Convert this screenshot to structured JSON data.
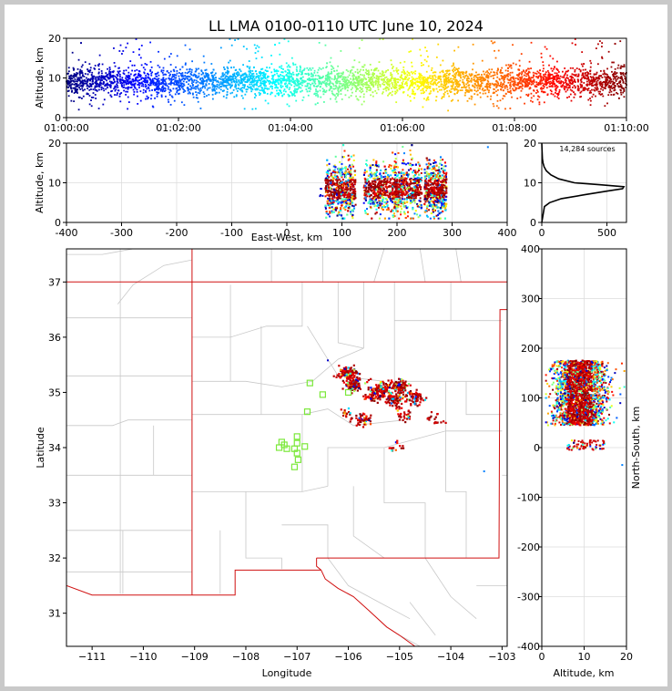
{
  "chart_data": [
    {
      "type": "scatter",
      "panel": "time-altitude",
      "title": "LL LMA 0100-0110 UTC June 10, 2024",
      "xlabel": "",
      "ylabel": "Altitude, km",
      "x_ticks": [
        "01:00:00",
        "01:02:00",
        "01:04:00",
        "01:06:00",
        "01:08:00",
        "01:10:00"
      ],
      "xlim_minutes": [
        0,
        10
      ],
      "ylim": [
        0,
        20
      ],
      "y_ticks": [
        0,
        10,
        20
      ],
      "altitude_band_km": [
        6,
        12
      ],
      "altitude_center_km": 9,
      "colormap": "jet, colored by time"
    },
    {
      "type": "scatter",
      "panel": "east-west-altitude",
      "xlabel": "East-West, km",
      "ylabel": "Altitude, km",
      "xlim": [
        -400,
        400
      ],
      "x_ticks": [
        -400,
        -300,
        -200,
        -100,
        0,
        100,
        200,
        300,
        400
      ],
      "ylim": [
        0,
        20
      ],
      "y_ticks": [
        0,
        10,
        20
      ],
      "clusters_x_km": [
        [
          70,
          125
        ],
        [
          140,
          200
        ],
        [
          195,
          245
        ],
        [
          250,
          290
        ]
      ]
    },
    {
      "type": "line",
      "panel": "altitude-histogram",
      "annotation": "14,284 sources",
      "xlim": [
        0,
        650
      ],
      "x_ticks": [
        0,
        500
      ],
      "ylim": [
        0,
        20
      ],
      "y_ticks": [
        0,
        10,
        20
      ],
      "profile": [
        [
          0,
          0
        ],
        [
          20,
          4
        ],
        [
          60,
          5
        ],
        [
          150,
          6
        ],
        [
          330,
          7
        ],
        [
          520,
          8
        ],
        [
          620,
          8.5
        ],
        [
          630,
          9
        ],
        [
          450,
          9.5
        ],
        [
          250,
          10
        ],
        [
          130,
          11
        ],
        [
          70,
          12
        ],
        [
          35,
          13
        ],
        [
          18,
          14
        ],
        [
          10,
          15
        ],
        [
          5,
          16
        ],
        [
          2,
          18
        ],
        [
          0,
          20
        ]
      ]
    },
    {
      "type": "scatter",
      "panel": "plan-view-map",
      "xlabel": "Longitude",
      "ylabel": "Latitude",
      "xlim": [
        -111.5,
        -102.9
      ],
      "x_ticks": [
        -111,
        -110,
        -109,
        -108,
        -107,
        -106,
        -105,
        -104,
        -103
      ],
      "ylim": [
        30.4,
        37.6
      ],
      "y_ticks": [
        31,
        32,
        33,
        34,
        35,
        36,
        37
      ],
      "lightning_clusters": [
        {
          "lon": -106.0,
          "lat": 35.35,
          "count": 120
        },
        {
          "lon": -105.9,
          "lat": 35.15,
          "count": 120
        },
        {
          "lon": -105.35,
          "lat": 35.05,
          "count": 110
        },
        {
          "lon": -105.0,
          "lat": 35.1,
          "count": 110
        },
        {
          "lon": -105.1,
          "lat": 34.85,
          "count": 90
        },
        {
          "lon": -104.7,
          "lat": 34.9,
          "count": 60
        },
        {
          "lon": -105.5,
          "lat": 34.95,
          "count": 60
        },
        {
          "lon": -105.7,
          "lat": 34.5,
          "count": 50
        },
        {
          "lon": -104.95,
          "lat": 34.6,
          "count": 25
        },
        {
          "lon": -106.0,
          "lat": 34.6,
          "count": 20
        },
        {
          "lon": -104.3,
          "lat": 34.5,
          "count": 20
        },
        {
          "lon": -105.05,
          "lat": 34.0,
          "count": 15
        }
      ],
      "stations": [
        {
          "lon": -106.75,
          "lat": 35.17
        },
        {
          "lon": -106.5,
          "lat": 34.96
        },
        {
          "lon": -106.0,
          "lat": 35.0
        },
        {
          "lon": -106.8,
          "lat": 34.65
        },
        {
          "lon": -107.35,
          "lat": 34.0
        },
        {
          "lon": -107.25,
          "lat": 34.05
        },
        {
          "lon": -107.3,
          "lat": 34.1
        },
        {
          "lon": -107.2,
          "lat": 33.98
        },
        {
          "lon": -107.05,
          "lat": 33.98
        },
        {
          "lon": -106.85,
          "lat": 34.02
        },
        {
          "lon": -107.0,
          "lat": 34.2
        },
        {
          "lon": -107.0,
          "lat": 34.08
        },
        {
          "lon": -107.0,
          "lat": 33.9
        },
        {
          "lon": -106.98,
          "lat": 33.78
        },
        {
          "lon": -107.05,
          "lat": 33.65
        }
      ]
    },
    {
      "type": "scatter",
      "panel": "altitude-north-south",
      "xlabel": "Altitude, km",
      "ylabel": "North-South, km",
      "xlim": [
        0,
        20
      ],
      "x_ticks": [
        0,
        10,
        20
      ],
      "ylim": [
        -400,
        400
      ],
      "y_ticks": [
        -400,
        -300,
        -200,
        -100,
        0,
        100,
        200,
        300,
        400
      ],
      "clusters_y_km": [
        [
          40,
          175
        ],
        [
          -5,
          15
        ]
      ]
    }
  ],
  "colors": {
    "station_marker": "#7be83a",
    "state_border": "#d01010",
    "county_border": "#c8c8c8",
    "background": "#c9c9c9"
  }
}
